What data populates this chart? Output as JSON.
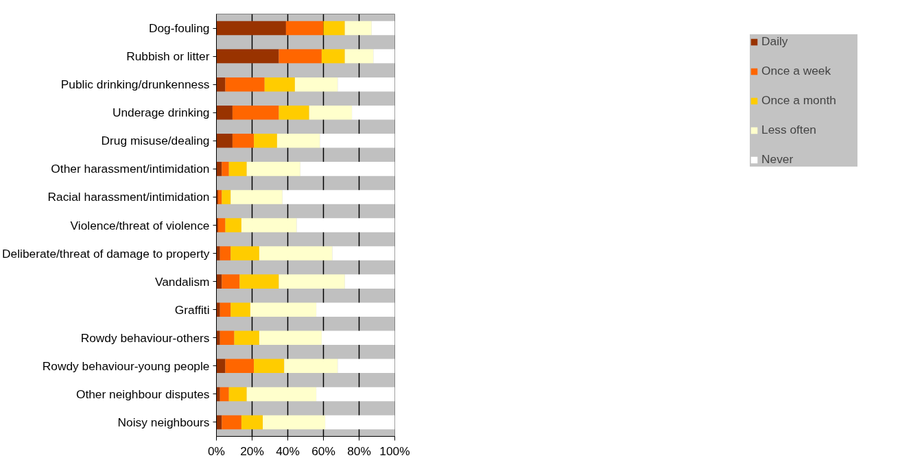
{
  "chart_data": {
    "type": "bar",
    "orientation": "horizontal",
    "stacked": true,
    "categories": [
      "Dog-fouling",
      "Rubbish or litter",
      "Public drinking/drunkenness",
      "Underage drinking",
      "Drug misuse/dealing",
      "Other harassment/intimidation",
      "Racial harassment/intimidation",
      "Violence/threat of violence",
      "Deliberate/threat of damage to property",
      "Vandalism",
      "Graffiti",
      "Rowdy behaviour-others",
      "Rowdy behaviour-young people",
      "Other neighbour disputes",
      "Noisy neighbours"
    ],
    "series": [
      {
        "name": "Daily",
        "color": "#993300",
        "values": [
          39,
          35,
          5,
          9,
          9,
          3,
          1,
          1,
          2,
          3,
          2,
          2,
          5,
          2,
          3
        ]
      },
      {
        "name": "Once a week",
        "color": "#ff6600",
        "values": [
          21,
          24,
          22,
          26,
          12,
          4,
          2,
          4,
          6,
          10,
          6,
          8,
          16,
          5,
          11
        ]
      },
      {
        "name": "Once a month",
        "color": "#ffcc00",
        "values": [
          12,
          13,
          17,
          17,
          13,
          10,
          5,
          9,
          16,
          22,
          11,
          14,
          17,
          10,
          12
        ]
      },
      {
        "name": "Less often",
        "color": "#ffffcc",
        "values": [
          15,
          16,
          24,
          24,
          24,
          30,
          29,
          31,
          41,
          37,
          37,
          35,
          30,
          39,
          35
        ]
      },
      {
        "name": "Never",
        "color": "#ffffff",
        "values": [
          13,
          12,
          32,
          24,
          42,
          53,
          63,
          55,
          35,
          28,
          44,
          41,
          32,
          44,
          39
        ]
      }
    ],
    "xlim": [
      0,
      100
    ],
    "xticks": [
      {
        "value": 0,
        "label": "0%"
      },
      {
        "value": 20,
        "label": "20%"
      },
      {
        "value": 40,
        "label": "40%"
      },
      {
        "value": 60,
        "label": "60%"
      },
      {
        "value": 80,
        "label": "80%"
      },
      {
        "value": 100,
        "label": "100%"
      }
    ],
    "grid": "x",
    "legend": "right"
  }
}
